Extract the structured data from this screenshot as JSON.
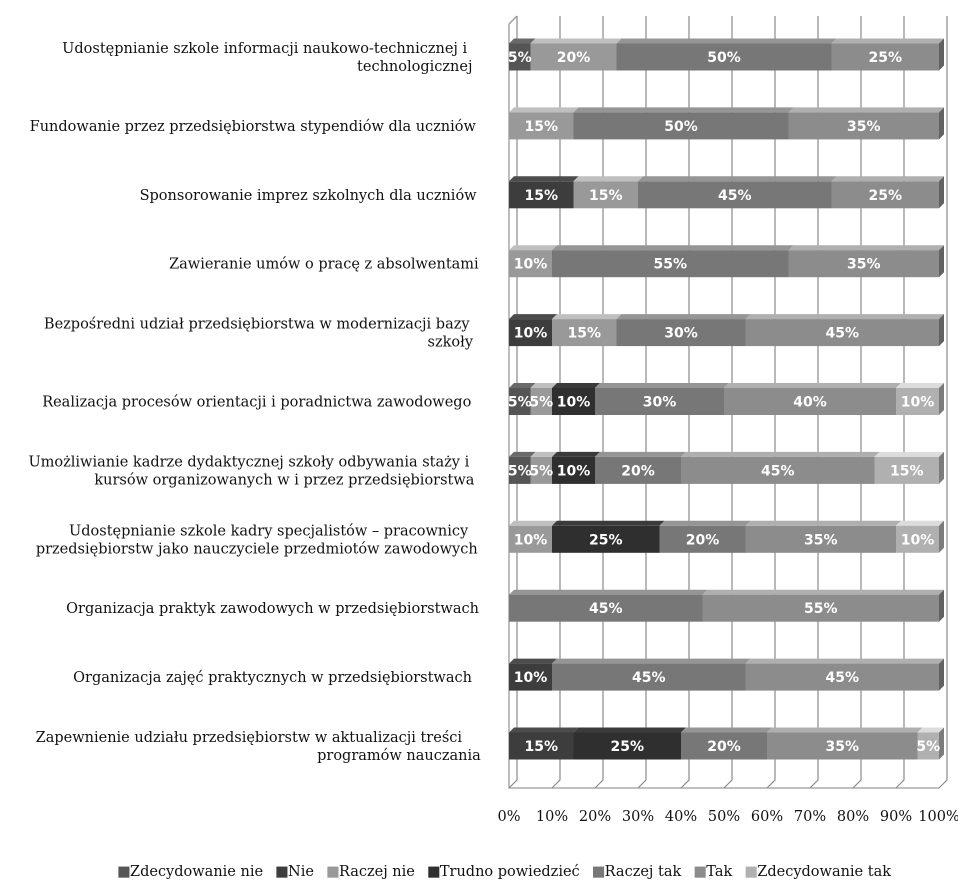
{
  "chart_data": {
    "type": "bar",
    "orientation": "horizontal",
    "stacked": "percent",
    "grid": true,
    "legend_position": "bottom",
    "categories": [
      [
        "Udostępnianie szkole informacji naukowo-technicznej i",
        "technologicznej"
      ],
      [
        "Fundowanie przez przedsiębiorstwa stypendiów dla uczniów"
      ],
      [
        "Sponsorowanie imprez szkolnych dla uczniów"
      ],
      [
        "Zawieranie umów o pracę z absolwentami"
      ],
      [
        "Bezpośredni udział przedsiębiorstwa w modernizacji bazy",
        "szkoły"
      ],
      [
        "Realizacja procesów orientacji i poradnictwa zawodowego"
      ],
      [
        "Umożliwianie kadrze dydaktycznej szkoły odbywania staży i",
        "kursów organizowanych w i przez przedsiębiorstwa"
      ],
      [
        "Udostępnianie szkole kadry specjalistów – pracownicy",
        "przedsiębiorstw jako nauczyciele przedmiotów zawodowych"
      ],
      [
        "Organizacja praktyk zawodowych w przedsiębiorstwach"
      ],
      [
        "Organizacja zajęć praktycznych w przedsiębiorstwach"
      ],
      [
        "Zapewnienie udziału przedsiębiorstw w aktualizacji treści",
        "programów nauczania"
      ]
    ],
    "series": [
      {
        "name": "Zdecydowanie nie",
        "color": "#555555",
        "values": [
          5,
          0,
          0,
          0,
          0,
          5,
          5,
          0,
          0,
          0,
          0
        ]
      },
      {
        "name": "Nie",
        "color": "#3d3d3d",
        "values": [
          0,
          0,
          15,
          0,
          10,
          0,
          0,
          0,
          0,
          10,
          15
        ]
      },
      {
        "name": "Raczej nie",
        "color": "#999999",
        "values": [
          20,
          15,
          15,
          10,
          15,
          5,
          5,
          10,
          0,
          0,
          0
        ]
      },
      {
        "name": "Trudno powiedzieć",
        "color": "#2f2f2f",
        "values": [
          0,
          0,
          0,
          0,
          0,
          10,
          10,
          25,
          0,
          0,
          25
        ]
      },
      {
        "name": "Raczej tak",
        "color": "#777777",
        "values": [
          50,
          50,
          45,
          55,
          30,
          30,
          20,
          20,
          45,
          45,
          20
        ]
      },
      {
        "name": "Tak",
        "color": "#8c8c8c",
        "values": [
          25,
          35,
          25,
          35,
          45,
          40,
          45,
          35,
          55,
          45,
          35
        ]
      },
      {
        "name": "Zdecydowanie tak",
        "color": "#b0b0b0",
        "values": [
          0,
          0,
          0,
          0,
          0,
          10,
          15,
          10,
          0,
          0,
          5
        ]
      }
    ],
    "xlim": [
      0,
      100
    ],
    "x_ticks": [
      "0%",
      "10%",
      "20%",
      "30%",
      "40%",
      "50%",
      "60%",
      "70%",
      "80%",
      "90%",
      "100%"
    ],
    "title": "",
    "xlabel": "",
    "ylabel": "",
    "legend_marker": "■"
  }
}
